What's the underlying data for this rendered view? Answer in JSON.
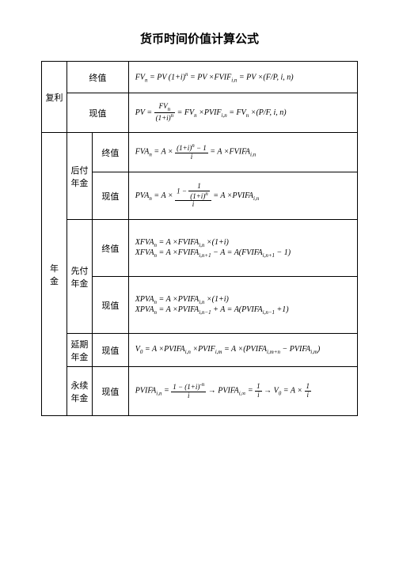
{
  "title": "货币时间价值计算公式",
  "colwidths": {
    "c1": 32,
    "c2": 32,
    "c3": 46,
    "c4": 290
  },
  "rowheights": {
    "r1": 40,
    "r2": 50,
    "r3": 50,
    "r4": 60,
    "r5": 72,
    "r6": 72,
    "r7": 42,
    "r8": 62
  },
  "cells": {
    "fuli": "复利",
    "zhongzhi": "终值",
    "xianzhi": "现值",
    "nianjin": "年　金",
    "houfu": "后付年金",
    "xianfu": "先付年金",
    "yanqi": "延期年金",
    "yongxu": "永续年金"
  },
  "formulas": {
    "f1_html": "FV<sub>n</sub> = PV (1+i)<sup>n</sup> = PV ×FVIF<sub>i,n</sub> = PV ×(F/P, i, n)",
    "f2_html": "PV = <span class=\"frac\"><span class=\"num\">FV<sub>n</sub></span><span class=\"den\">(1+i)<sup>n</sup></span></span> = FV<sub>n</sub> ×PVIF<sub>i,n</sub> = FV<sub>n</sub> ×(P/F, i, n)",
    "f3_html": "FVA<sub>n</sub> = A × <span class=\"frac\"><span class=\"num\">(1+i)<sup>n</sup> − 1</span><span class=\"den\">i</span></span> = A ×FVIFA<sub>i,n</sub>",
    "f4_html": "PVA<sub>n</sub> = A × <span class=\"frac\"><span class=\"num\">1 − <span class=\"frac\"><span class=\"num\">1</span><span class=\"den\">(1+i)<sup>n</sup></span></span></span><span class=\"den\">i</span></span> = A ×PVIFA<sub>i,n</sub>",
    "f5_html": "XFVA<sub>n</sub> = A ×FVIFA<sub>i,n</sub> ×(1+i)<br>XFVA<sub>n</sub> = A ×FVIFA<sub>i,n+1</sub> − A = A(FVIFA<sub>i,n+1</sub> − 1)",
    "f6_html": "XPVA<sub>n</sub> = A ×PVIFA<sub>i,n</sub> ×(1+i)<br>XPVA<sub>n</sub> = A ×PVIFA<sub>i,n−1</sub> + A = A(PVIFA<sub>i,n−1</sub> +1)",
    "f7_html": "V<sub>0</sub> = A ×PVIFA<sub>i,n</sub> ×PVIF<sub>i,m</sub> = A ×(PVIFA<sub>i,m+n</sub> − PVIFA<sub>i,m</sub>)",
    "f8_html": "PVIFA<sub>i,n</sub> = <span class=\"frac\"><span class=\"num\">1 − (1+i)<sup>-n</sup></span><span class=\"den\">i</span></span> → PVIFA<sub>i,∞</sub> = <span class=\"frac\"><span class=\"num\">1</span><span class=\"den\">i</span></span> → V<sub>0</sub> = A × <span class=\"frac\"><span class=\"num\">1</span><span class=\"den\">i</span></span>"
  }
}
